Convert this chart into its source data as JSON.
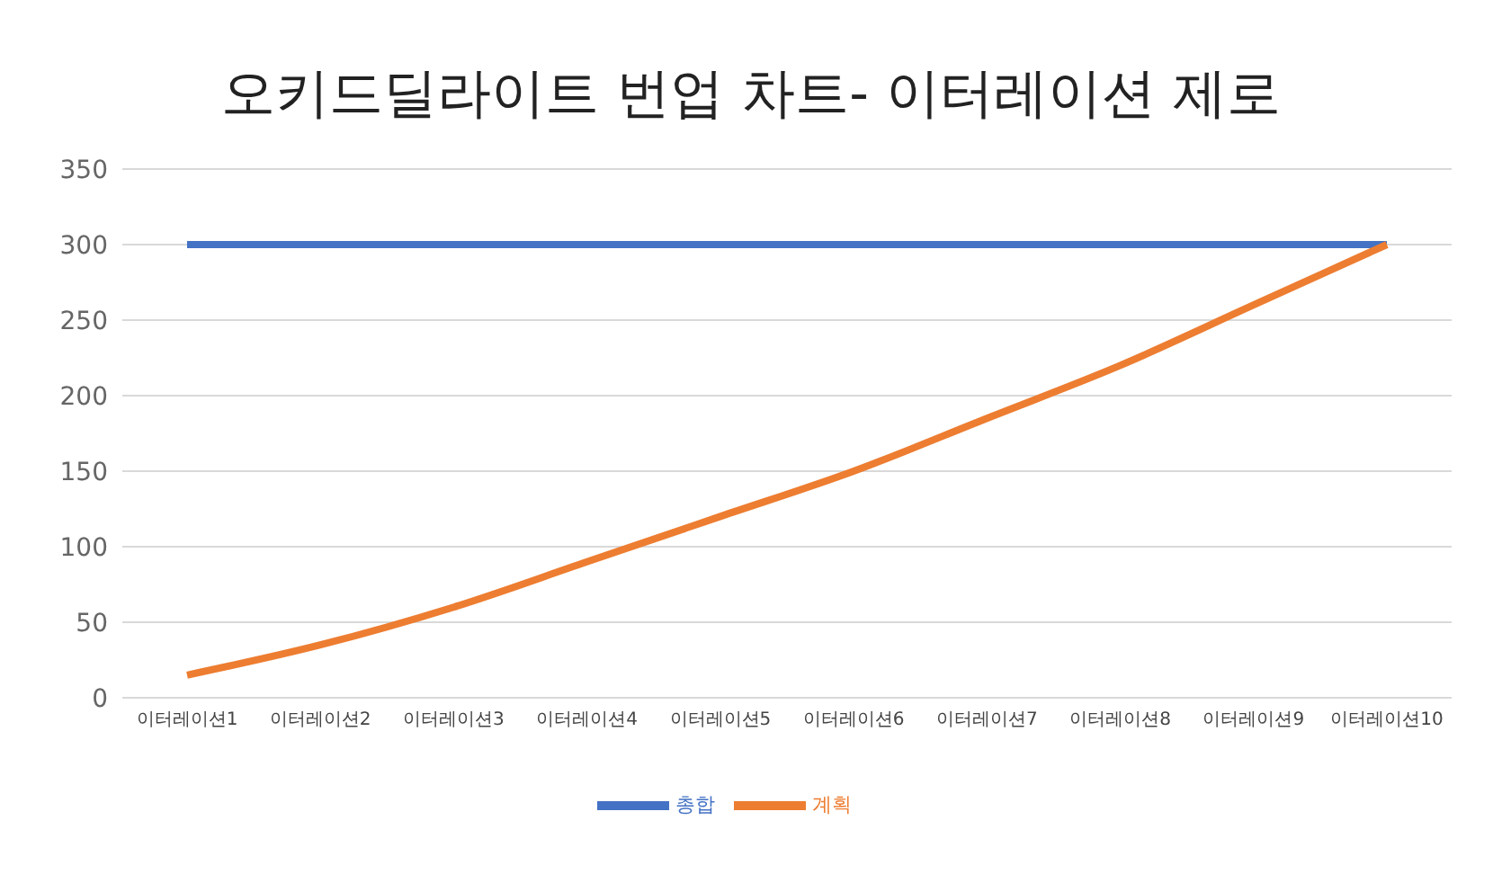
{
  "chart_data": {
    "type": "line",
    "title": "오키드딜라이트 번업 차트- 이터레이션 제로",
    "categories": [
      "이터레이션1",
      "이터레이션2",
      "이터레이션3",
      "이터레이션4",
      "이터레이션5",
      "이터레이션6",
      "이터레이션7",
      "이터레이션8",
      "이터레이션9",
      "이터레이션10"
    ],
    "series": [
      {
        "name": "총합",
        "color": "#4472c4",
        "values": [
          300,
          300,
          300,
          300,
          300,
          300,
          300,
          300,
          300,
          300
        ]
      },
      {
        "name": "계획",
        "color": "#ed7d31",
        "values": [
          15,
          35,
          60,
          90,
          120,
          150,
          185,
          220,
          260,
          300
        ]
      }
    ],
    "ylim": [
      0,
      350
    ],
    "yticks": [
      0,
      50,
      100,
      150,
      200,
      250,
      300,
      350
    ],
    "grid": "y",
    "legend": "bottom",
    "marker": "none",
    "line_style": "solid"
  }
}
